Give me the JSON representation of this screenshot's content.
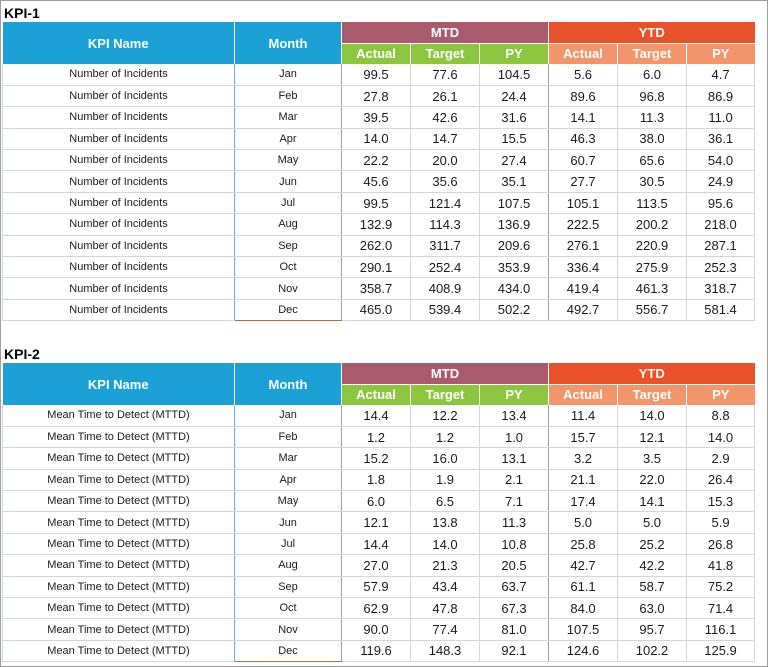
{
  "kpi1": {
    "title": "KPI-1",
    "headers": {
      "kpi_name": "KPI Name",
      "month": "Month",
      "mtd": "MTD",
      "ytd": "YTD",
      "actual": "Actual",
      "target": "Target",
      "py": "PY"
    },
    "rows": [
      {
        "name": "Number of Incidents",
        "month": "Jan",
        "mtd_actual": "99.5",
        "mtd_target": "77.6",
        "mtd_py": "104.5",
        "ytd_actual": "5.6",
        "ytd_target": "6.0",
        "ytd_py": "4.7"
      },
      {
        "name": "Number of Incidents",
        "month": "Feb",
        "mtd_actual": "27.8",
        "mtd_target": "26.1",
        "mtd_py": "24.4",
        "ytd_actual": "89.6",
        "ytd_target": "96.8",
        "ytd_py": "86.9"
      },
      {
        "name": "Number of Incidents",
        "month": "Mar",
        "mtd_actual": "39.5",
        "mtd_target": "42.6",
        "mtd_py": "31.6",
        "ytd_actual": "14.1",
        "ytd_target": "11.3",
        "ytd_py": "11.0"
      },
      {
        "name": "Number of Incidents",
        "month": "Apr",
        "mtd_actual": "14.0",
        "mtd_target": "14.7",
        "mtd_py": "15.5",
        "ytd_actual": "46.3",
        "ytd_target": "38.0",
        "ytd_py": "36.1"
      },
      {
        "name": "Number of Incidents",
        "month": "May",
        "mtd_actual": "22.2",
        "mtd_target": "20.0",
        "mtd_py": "27.4",
        "ytd_actual": "60.7",
        "ytd_target": "65.6",
        "ytd_py": "54.0"
      },
      {
        "name": "Number of Incidents",
        "month": "Jun",
        "mtd_actual": "45.6",
        "mtd_target": "35.6",
        "mtd_py": "35.1",
        "ytd_actual": "27.7",
        "ytd_target": "30.5",
        "ytd_py": "24.9"
      },
      {
        "name": "Number of Incidents",
        "month": "Jul",
        "mtd_actual": "99.5",
        "mtd_target": "121.4",
        "mtd_py": "107.5",
        "ytd_actual": "105.1",
        "ytd_target": "113.5",
        "ytd_py": "95.6"
      },
      {
        "name": "Number of Incidents",
        "month": "Aug",
        "mtd_actual": "132.9",
        "mtd_target": "114.3",
        "mtd_py": "136.9",
        "ytd_actual": "222.5",
        "ytd_target": "200.2",
        "ytd_py": "218.0"
      },
      {
        "name": "Number of Incidents",
        "month": "Sep",
        "mtd_actual": "262.0",
        "mtd_target": "311.7",
        "mtd_py": "209.6",
        "ytd_actual": "276.1",
        "ytd_target": "220.9",
        "ytd_py": "287.1"
      },
      {
        "name": "Number of Incidents",
        "month": "Oct",
        "mtd_actual": "290.1",
        "mtd_target": "252.4",
        "mtd_py": "353.9",
        "ytd_actual": "336.4",
        "ytd_target": "275.9",
        "ytd_py": "252.3"
      },
      {
        "name": "Number of Incidents",
        "month": "Nov",
        "mtd_actual": "358.7",
        "mtd_target": "408.9",
        "mtd_py": "434.0",
        "ytd_actual": "419.4",
        "ytd_target": "461.3",
        "ytd_py": "318.7"
      },
      {
        "name": "Number of Incidents",
        "month": "Dec",
        "mtd_actual": "465.0",
        "mtd_target": "539.4",
        "mtd_py": "502.2",
        "ytd_actual": "492.7",
        "ytd_target": "556.7",
        "ytd_py": "581.4"
      }
    ]
  },
  "kpi2": {
    "title": "KPI-2",
    "headers": {
      "kpi_name": "KPI Name",
      "month": "Month",
      "mtd": "MTD",
      "ytd": "YTD",
      "actual": "Actual",
      "target": "Target",
      "py": "PY"
    },
    "rows": [
      {
        "name": "Mean Time to Detect (MTTD)",
        "month": "Jan",
        "mtd_actual": "14.4",
        "mtd_target": "12.2",
        "mtd_py": "13.4",
        "ytd_actual": "11.4",
        "ytd_target": "14.0",
        "ytd_py": "8.8"
      },
      {
        "name": "Mean Time to Detect (MTTD)",
        "month": "Feb",
        "mtd_actual": "1.2",
        "mtd_target": "1.2",
        "mtd_py": "1.0",
        "ytd_actual": "15.7",
        "ytd_target": "12.1",
        "ytd_py": "14.0"
      },
      {
        "name": "Mean Time to Detect (MTTD)",
        "month": "Mar",
        "mtd_actual": "15.2",
        "mtd_target": "16.0",
        "mtd_py": "13.1",
        "ytd_actual": "3.2",
        "ytd_target": "3.5",
        "ytd_py": "2.9"
      },
      {
        "name": "Mean Time to Detect (MTTD)",
        "month": "Apr",
        "mtd_actual": "1.8",
        "mtd_target": "1.9",
        "mtd_py": "2.1",
        "ytd_actual": "21.1",
        "ytd_target": "22.0",
        "ytd_py": "26.4"
      },
      {
        "name": "Mean Time to Detect (MTTD)",
        "month": "May",
        "mtd_actual": "6.0",
        "mtd_target": "6.5",
        "mtd_py": "7.1",
        "ytd_actual": "17.4",
        "ytd_target": "14.1",
        "ytd_py": "15.3"
      },
      {
        "name": "Mean Time to Detect (MTTD)",
        "month": "Jun",
        "mtd_actual": "12.1",
        "mtd_target": "13.8",
        "mtd_py": "11.3",
        "ytd_actual": "5.0",
        "ytd_target": "5.0",
        "ytd_py": "5.9"
      },
      {
        "name": "Mean Time to Detect (MTTD)",
        "month": "Jul",
        "mtd_actual": "14.4",
        "mtd_target": "14.0",
        "mtd_py": "10.8",
        "ytd_actual": "25.8",
        "ytd_target": "25.2",
        "ytd_py": "26.8"
      },
      {
        "name": "Mean Time to Detect (MTTD)",
        "month": "Aug",
        "mtd_actual": "27.0",
        "mtd_target": "21.3",
        "mtd_py": "20.5",
        "ytd_actual": "42.7",
        "ytd_target": "42.2",
        "ytd_py": "41.8"
      },
      {
        "name": "Mean Time to Detect (MTTD)",
        "month": "Sep",
        "mtd_actual": "57.9",
        "mtd_target": "43.4",
        "mtd_py": "63.7",
        "ytd_actual": "61.1",
        "ytd_target": "58.7",
        "ytd_py": "75.2"
      },
      {
        "name": "Mean Time to Detect (MTTD)",
        "month": "Oct",
        "mtd_actual": "62.9",
        "mtd_target": "47.8",
        "mtd_py": "67.3",
        "ytd_actual": "84.0",
        "ytd_target": "63.0",
        "ytd_py": "71.4"
      },
      {
        "name": "Mean Time to Detect (MTTD)",
        "month": "Nov",
        "mtd_actual": "90.0",
        "mtd_target": "77.4",
        "mtd_py": "81.0",
        "ytd_actual": "107.5",
        "ytd_target": "95.7",
        "ytd_py": "116.1"
      },
      {
        "name": "Mean Time to Detect (MTTD)",
        "month": "Dec",
        "mtd_actual": "119.6",
        "mtd_target": "148.3",
        "mtd_py": "92.1",
        "ytd_actual": "124.6",
        "ytd_target": "102.2",
        "ytd_py": "125.9"
      }
    ]
  },
  "colors": {
    "header_blue": "#1ba1d6",
    "mtd_header": "#a95a6c",
    "mtd_sub": "#8cc63f",
    "ytd_header": "#e8512a",
    "ytd_sub": "#f2956b"
  }
}
